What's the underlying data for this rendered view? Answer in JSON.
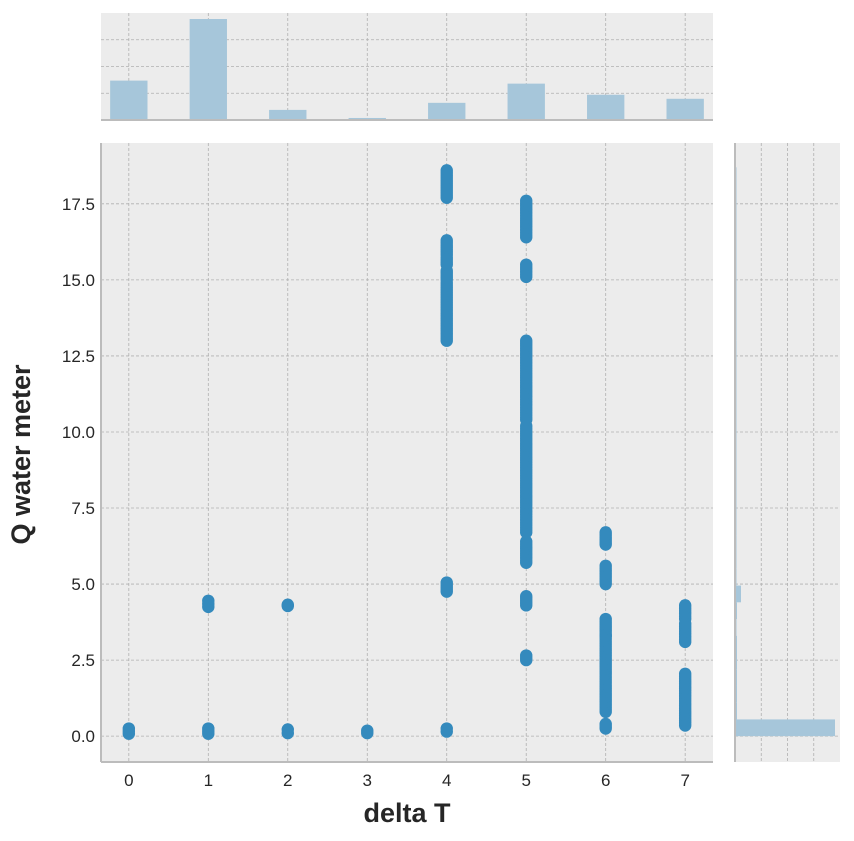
{
  "chart_data": {
    "type": "scatter",
    "subtype": "jointplot",
    "xlabel": "delta T",
    "ylabel": "Q water meter",
    "xlim": [
      -0.35,
      7.35
    ],
    "ylim": [
      -0.85,
      19.5
    ],
    "x_ticks": [
      0,
      1,
      2,
      3,
      4,
      5,
      6,
      7
    ],
    "y_ticks": [
      0.0,
      2.5,
      5.0,
      7.5,
      10.0,
      12.5,
      15.0,
      17.5
    ],
    "y_tick_labels": [
      "0.0",
      "2.5",
      "5.0",
      "7.5",
      "10.0",
      "12.5",
      "15.0",
      "17.5"
    ],
    "grid": true,
    "point_color": "#348abd",
    "hist_color": "#a6c6da",
    "background_color": "#ececec",
    "points": [
      {
        "x": 0,
        "y_ranges": [
          [
            0.08,
            0.25
          ]
        ]
      },
      {
        "x": 1,
        "y_ranges": [
          [
            0.08,
            0.25
          ],
          [
            4.25,
            4.45
          ]
        ]
      },
      {
        "x": 2,
        "y_ranges": [
          [
            0.1,
            0.22
          ],
          [
            4.28,
            4.32
          ]
        ]
      },
      {
        "x": 3,
        "y_ranges": [
          [
            0.1,
            0.18
          ]
        ]
      },
      {
        "x": 4,
        "y_ranges": [
          [
            0.15,
            0.25
          ],
          [
            4.75,
            5.05
          ],
          [
            13.0,
            14.9
          ],
          [
            15.0,
            15.3
          ],
          [
            15.5,
            16.3
          ],
          [
            17.7,
            18.6
          ]
        ]
      },
      {
        "x": 5,
        "y_ranges": [
          [
            2.5,
            2.65
          ],
          [
            4.3,
            4.6
          ],
          [
            5.7,
            6.4
          ],
          [
            6.7,
            10.2
          ],
          [
            10.4,
            13.0
          ],
          [
            15.1,
            15.5
          ],
          [
            16.4,
            17.6
          ]
        ]
      },
      {
        "x": 6,
        "y_ranges": [
          [
            0.25,
            0.4
          ],
          [
            0.8,
            3.3
          ],
          [
            3.3,
            3.85
          ],
          [
            5.0,
            5.6
          ],
          [
            6.3,
            6.7
          ]
        ]
      },
      {
        "x": 7,
        "y_ranges": [
          [
            0.35,
            2.05
          ],
          [
            3.1,
            3.7
          ],
          [
            3.85,
            4.3
          ]
        ]
      }
    ],
    "marginal_x": {
      "categories": [
        0,
        1,
        2,
        3,
        4,
        5,
        6,
        7
      ],
      "relative_heights": [
        0.39,
        1.0,
        0.1,
        0.02,
        0.17,
        0.36,
        0.25,
        0.21
      ]
    },
    "marginal_y": {
      "bins": [
        {
          "y": [
            0.0,
            0.55
          ],
          "relative_length": 1.0
        },
        {
          "y": [
            0.55,
            1.1
          ],
          "relative_length": 0.02
        },
        {
          "y": [
            1.1,
            1.65
          ],
          "relative_length": 0.02
        },
        {
          "y": [
            1.65,
            2.2
          ],
          "relative_length": 0.02
        },
        {
          "y": [
            2.2,
            2.75
          ],
          "relative_length": 0.02
        },
        {
          "y": [
            2.75,
            3.3
          ],
          "relative_length": 0.02
        },
        {
          "y": [
            3.3,
            3.85
          ],
          "relative_length": 0.015
        },
        {
          "y": [
            3.85,
            4.4
          ],
          "relative_length": 0.02
        },
        {
          "y": [
            4.4,
            4.95
          ],
          "relative_length": 0.06
        },
        {
          "y": [
            4.95,
            5.5
          ],
          "relative_length": 0.01
        },
        {
          "y": [
            5.5,
            6.6
          ],
          "relative_length": 0.008
        },
        {
          "y": [
            6.6,
            13.0
          ],
          "relative_length": 0.005
        },
        {
          "y": [
            13.0,
            18.7
          ],
          "relative_length": 0.006
        }
      ]
    }
  }
}
